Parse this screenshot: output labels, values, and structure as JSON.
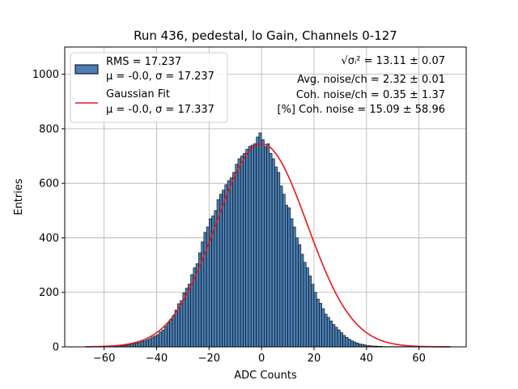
{
  "chart_data": {
    "type": "histogram",
    "title": "Run 436, pedestal, lo Gain, Channels 0-127",
    "xlabel": "ADC Counts",
    "ylabel": "Entries",
    "xlim": [
      -75,
      78
    ],
    "ylim": [
      0,
      1100
    ],
    "xticks": [
      -60,
      -40,
      -20,
      0,
      20,
      40,
      60
    ],
    "xtick_labels": [
      "−60",
      "−40",
      "−20",
      "0",
      "20",
      "40",
      "60"
    ],
    "yticks": [
      0,
      200,
      400,
      600,
      800,
      1000
    ],
    "ytick_labels": [
      "0",
      "200",
      "400",
      "600",
      "800",
      "1000"
    ],
    "grid": true,
    "bin_width": 1,
    "bin_start": -67,
    "counts": [
      1,
      1,
      1,
      1,
      1,
      1,
      1,
      1,
      2,
      2,
      3,
      3,
      4,
      4,
      5,
      6,
      8,
      10,
      12,
      14,
      16,
      20,
      22,
      26,
      30,
      36,
      40,
      45,
      55,
      62,
      75,
      88,
      100,
      115,
      135,
      158,
      170,
      198,
      215,
      230,
      265,
      290,
      305,
      345,
      385,
      420,
      440,
      470,
      480,
      500,
      540,
      560,
      575,
      595,
      610,
      620,
      640,
      670,
      690,
      700,
      710,
      725,
      735,
      740,
      745,
      770,
      785,
      760,
      735,
      745,
      710,
      690,
      660,
      640,
      590,
      560,
      520,
      510,
      470,
      440,
      400,
      375,
      340,
      310,
      290,
      260,
      230,
      200,
      175,
      160,
      140,
      120,
      108,
      95,
      82,
      72,
      62,
      52,
      42,
      35,
      28,
      22,
      18,
      14,
      11,
      9,
      7,
      5,
      4,
      3,
      3,
      2,
      2,
      1,
      1,
      1,
      1,
      1,
      1,
      1,
      1,
      1,
      1,
      1,
      1,
      1,
      1,
      1,
      1,
      1,
      1,
      1,
      1,
      1,
      1,
      1,
      1
    ],
    "histogram_color": "#4a7fb5",
    "fit": {
      "name": "Gaussian Fit",
      "mu": 0.0,
      "sigma": 17.337,
      "amplitude": 745,
      "x_range": [
        -67,
        72
      ],
      "color": "#e31a1c"
    },
    "legend": {
      "position": "upper-left",
      "entries": [
        {
          "kind": "patch",
          "line1": "RMS = 17.237",
          "line2": "μ = -0.0, σ = 17.237"
        },
        {
          "kind": "line",
          "line1": "Gaussian Fit",
          "line2": "μ = -0.0, σ = 17.337"
        }
      ]
    },
    "annotations": [
      {
        "math": "√σᵢ²",
        "text": " = 13.11 ± 0.07"
      },
      {
        "text": "Avg. noise/ch = 2.32 ± 0.01"
      },
      {
        "text": "Coh. noise/ch = 0.35 ± 1.37"
      },
      {
        "text": "[%] Coh. noise = 15.09 ± 58.96"
      }
    ]
  }
}
